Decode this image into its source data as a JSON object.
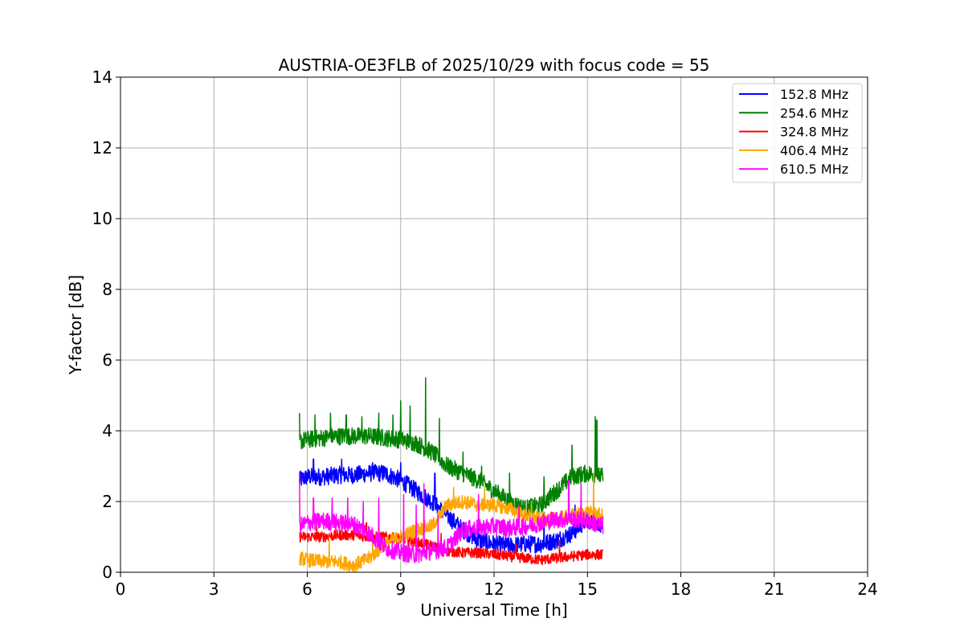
{
  "chart_data": {
    "type": "line",
    "title": "AUSTRIA-OE3FLB of 2025/10/29 with focus code = 55",
    "xlabel": "Universal Time [h]",
    "ylabel": "Y-factor [dB]",
    "xlim": [
      0,
      24
    ],
    "ylim": [
      0,
      14
    ],
    "xticks": [
      0,
      3,
      6,
      9,
      12,
      15,
      18,
      21,
      24
    ],
    "yticks": [
      0,
      2,
      4,
      6,
      8,
      10,
      12,
      14
    ],
    "xtick_labels": [
      "0",
      "3",
      "6",
      "9",
      "12",
      "15",
      "18",
      "21",
      "24"
    ],
    "ytick_labels": [
      "0",
      "2",
      "4",
      "6",
      "8",
      "10",
      "12",
      "14"
    ],
    "grid": true,
    "legend_position": "top-right",
    "series": [
      {
        "name": "152.8 MHz",
        "label": "152.8 MHz",
        "color": "#0000ff",
        "x": [
          5.75,
          6.0,
          6.5,
          7.0,
          7.5,
          8.0,
          8.5,
          9.0,
          9.5,
          10.0,
          10.5,
          11.0,
          11.5,
          12.0,
          12.5,
          13.0,
          13.5,
          14.0,
          14.5,
          15.0,
          15.5
        ],
        "y": [
          2.6,
          2.7,
          2.7,
          2.75,
          2.75,
          2.8,
          2.8,
          2.6,
          2.3,
          2.0,
          1.6,
          1.2,
          0.9,
          0.8,
          0.75,
          0.8,
          0.8,
          0.9,
          1.1,
          1.5,
          1.35
        ],
        "noise": 0.25,
        "spikes": [
          [
            6.2,
            3.2
          ],
          [
            7.1,
            3.2
          ],
          [
            8.1,
            3.1
          ],
          [
            9.0,
            3.1
          ],
          [
            10.1,
            2.8
          ],
          [
            11.5,
            1.6
          ],
          [
            13.6,
            1.7
          ],
          [
            14.6,
            1.9
          ]
        ]
      },
      {
        "name": "254.6 MHz",
        "label": "254.6 MHz",
        "color": "#008000",
        "x": [
          5.75,
          6.0,
          6.5,
          7.0,
          7.5,
          8.0,
          8.5,
          9.0,
          9.5,
          10.0,
          10.5,
          11.0,
          11.5,
          12.0,
          12.5,
          13.0,
          13.5,
          14.0,
          14.5,
          15.0,
          15.5
        ],
        "y": [
          3.7,
          3.75,
          3.8,
          3.85,
          3.85,
          3.85,
          3.8,
          3.75,
          3.65,
          3.4,
          3.0,
          2.8,
          2.6,
          2.3,
          2.0,
          1.8,
          1.9,
          2.3,
          2.7,
          2.8,
          2.7
        ],
        "noise": 0.25,
        "spikes": [
          [
            5.75,
            4.5
          ],
          [
            6.25,
            4.45
          ],
          [
            6.75,
            4.5
          ],
          [
            7.25,
            4.45
          ],
          [
            7.75,
            4.4
          ],
          [
            8.3,
            4.5
          ],
          [
            8.75,
            4.45
          ],
          [
            9.0,
            4.85
          ],
          [
            9.3,
            4.7
          ],
          [
            9.8,
            5.5
          ],
          [
            10.25,
            4.35
          ],
          [
            11.0,
            3.4
          ],
          [
            11.6,
            3.0
          ],
          [
            12.5,
            2.8
          ],
          [
            13.6,
            2.7
          ],
          [
            14.5,
            3.6
          ],
          [
            15.25,
            4.4
          ],
          [
            15.3,
            4.3
          ]
        ]
      },
      {
        "name": "324.8 MHz",
        "label": "324.8 MHz",
        "color": "#ff0000",
        "x": [
          5.75,
          6.0,
          6.5,
          7.0,
          7.5,
          8.0,
          8.5,
          9.0,
          9.5,
          10.0,
          10.5,
          11.0,
          11.5,
          12.0,
          12.5,
          13.0,
          13.5,
          14.0,
          14.5,
          15.0,
          15.5
        ],
        "y": [
          1.0,
          1.0,
          1.0,
          1.05,
          1.05,
          1.0,
          1.0,
          0.95,
          0.85,
          0.75,
          0.6,
          0.55,
          0.55,
          0.5,
          0.45,
          0.4,
          0.35,
          0.4,
          0.45,
          0.5,
          0.5
        ],
        "noise": 0.15,
        "spikes": [
          [
            6.3,
            1.35
          ],
          [
            7.9,
            1.4
          ],
          [
            10.3,
            1.1
          ],
          [
            12.7,
            0.8
          ],
          [
            14.1,
            0.9
          ]
        ]
      },
      {
        "name": "406.4 MHz",
        "label": "406.4 MHz",
        "color": "#ffa500",
        "x": [
          5.75,
          6.0,
          6.5,
          7.0,
          7.5,
          8.0,
          8.5,
          9.0,
          9.5,
          10.0,
          10.5,
          11.0,
          11.5,
          12.0,
          12.5,
          13.0,
          13.5,
          14.0,
          14.5,
          15.0,
          15.5
        ],
        "y": [
          0.4,
          0.35,
          0.3,
          0.3,
          0.2,
          0.4,
          0.8,
          1.0,
          1.2,
          1.3,
          1.9,
          2.0,
          1.9,
          1.9,
          1.8,
          1.6,
          1.5,
          1.5,
          1.6,
          1.7,
          1.6
        ],
        "noise": 0.2,
        "spikes": [
          [
            6.7,
            1.0
          ],
          [
            8.1,
            1.2
          ],
          [
            10.7,
            2.4
          ],
          [
            11.7,
            2.4
          ],
          [
            13.2,
            2.0
          ],
          [
            15.2,
            2.8
          ]
        ]
      },
      {
        "name": "610.5 MHz",
        "label": "610.5 MHz",
        "color": "#ff00ff",
        "x": [
          5.75,
          6.0,
          6.5,
          7.0,
          7.5,
          8.0,
          8.5,
          9.0,
          9.5,
          10.0,
          10.5,
          11.0,
          11.5,
          12.0,
          12.5,
          13.0,
          13.5,
          14.0,
          14.5,
          15.0,
          15.5
        ],
        "y": [
          1.3,
          1.4,
          1.45,
          1.4,
          1.35,
          1.1,
          0.7,
          0.55,
          0.5,
          0.6,
          0.7,
          1.2,
          1.25,
          1.3,
          1.25,
          1.3,
          1.4,
          1.5,
          1.5,
          1.45,
          1.3
        ],
        "noise": 0.25,
        "spikes": [
          [
            5.75,
            2.85
          ],
          [
            6.2,
            2.1
          ],
          [
            6.8,
            2.1
          ],
          [
            7.3,
            2.1
          ],
          [
            7.8,
            2.0
          ],
          [
            8.3,
            2.1
          ],
          [
            9.1,
            2.2
          ],
          [
            9.5,
            1.9
          ],
          [
            9.75,
            2.5
          ],
          [
            10.2,
            1.6
          ],
          [
            11.5,
            2.2
          ],
          [
            12.8,
            1.9
          ],
          [
            14.4,
            2.6
          ],
          [
            14.8,
            2.5
          ]
        ]
      }
    ]
  }
}
